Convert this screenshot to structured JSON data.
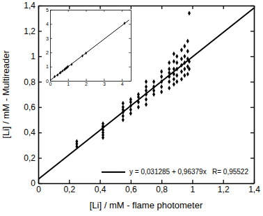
{
  "chart_data": [
    {
      "type": "scatter",
      "x_label": "[Li] / mM - flame photometer",
      "y_label": "[Li] / mM - Multireader",
      "xlim": [
        0,
        1.4
      ],
      "ylim": [
        0,
        1.4
      ],
      "xticks": [
        0,
        {
          "value": 0.2,
          "label": "0,2"
        },
        {
          "value": 0.4,
          "label": "0,4"
        },
        {
          "value": 0.6,
          "label": "0,6"
        },
        {
          "value": 0.8,
          "label": "0,8"
        },
        1,
        {
          "value": 1.2,
          "label": "1,2"
        },
        {
          "value": 1.4,
          "label": "1,4"
        }
      ],
      "yticks": [
        0,
        {
          "value": 0.2,
          "label": "0,2"
        },
        {
          "value": 0.4,
          "label": "0,4"
        },
        {
          "value": 0.6,
          "label": "0,6"
        },
        {
          "value": 0.8,
          "label": "0,8"
        },
        1,
        {
          "value": 1.2,
          "label": "1,2"
        },
        {
          "value": 1.4,
          "label": "1,4"
        }
      ],
      "legend": "lower right",
      "series": [
        {
          "type": "scatter",
          "marker": "diamond",
          "color": "#000000",
          "x": [
            0.25,
            0.25,
            0.25,
            0.42,
            0.42,
            0.42,
            0.42,
            0.42,
            0.42,
            0.42,
            0.55,
            0.55,
            0.55,
            0.55,
            0.55,
            0.55,
            0.6,
            0.6,
            0.6,
            0.6,
            0.6,
            0.65,
            0.65,
            0.65,
            0.65,
            0.7,
            0.7,
            0.7,
            0.7,
            0.7,
            0.7,
            0.75,
            0.75,
            0.75,
            0.75,
            0.8,
            0.8,
            0.8,
            0.8,
            0.8,
            0.85,
            0.85,
            0.85,
            0.85,
            0.85,
            0.85,
            0.88,
            0.88,
            0.88,
            0.88,
            0.88,
            0.88,
            0.9,
            0.9,
            0.9,
            0.9,
            0.9,
            0.93,
            0.93,
            0.93,
            0.93,
            0.93,
            0.95,
            0.95,
            0.95,
            0.95,
            0.95,
            0.97,
            0.97,
            0.97,
            0.97,
            0.97,
            0.98,
            0.98,
            0.98
          ],
          "values": [
            0.29,
            0.31,
            0.33,
            0.36,
            0.38,
            0.4,
            0.42,
            0.44,
            0.45,
            0.47,
            0.5,
            0.53,
            0.56,
            0.58,
            0.6,
            0.63,
            0.55,
            0.58,
            0.61,
            0.64,
            0.66,
            0.6,
            0.64,
            0.68,
            0.7,
            0.62,
            0.66,
            0.7,
            0.73,
            0.76,
            0.8,
            0.7,
            0.73,
            0.76,
            0.8,
            0.72,
            0.76,
            0.8,
            0.84,
            0.88,
            0.75,
            0.8,
            0.84,
            0.87,
            0.9,
            0.95,
            0.78,
            0.82,
            0.86,
            0.9,
            0.96,
            1.02,
            0.8,
            0.85,
            0.9,
            0.95,
            1.0,
            0.82,
            0.88,
            0.93,
            0.98,
            1.05,
            0.85,
            0.9,
            0.95,
            1.0,
            1.08,
            0.86,
            0.92,
            0.98,
            1.04,
            1.12,
            0.9,
            0.96,
            1.34
          ]
        },
        {
          "type": "line",
          "name": "y = 0,031285 + 0,96379x   R= 0,95522",
          "color": "#000000",
          "line_style": "solid",
          "x": [
            0,
            1.4
          ],
          "values": [
            0.031285,
            1.380591
          ]
        }
      ]
    },
    {
      "type": "scatter",
      "xlim": [
        0,
        4.5
      ],
      "ylim": [
        0,
        5
      ],
      "xticks": [
        0,
        1,
        2,
        3,
        4
      ],
      "yticks": [
        0,
        1,
        2,
        3,
        4,
        5
      ],
      "series": [
        {
          "type": "scatter",
          "marker": "diamond",
          "color": "#000000",
          "x": [
            0.25,
            0.42,
            0.55,
            0.6,
            0.7,
            0.8,
            0.85,
            0.9,
            0.95,
            1.0,
            1.2,
            1.8,
            2.0,
            4.15
          ],
          "values": [
            0.3,
            0.4,
            0.55,
            0.6,
            0.7,
            0.78,
            0.85,
            0.9,
            0.95,
            1.0,
            1.15,
            1.75,
            1.95,
            4.05
          ]
        },
        {
          "type": "line",
          "color": "#000000",
          "line_style": "solid",
          "x": [
            0,
            4.4
          ],
          "values": [
            0.031285,
            4.27196
          ]
        }
      ]
    }
  ]
}
